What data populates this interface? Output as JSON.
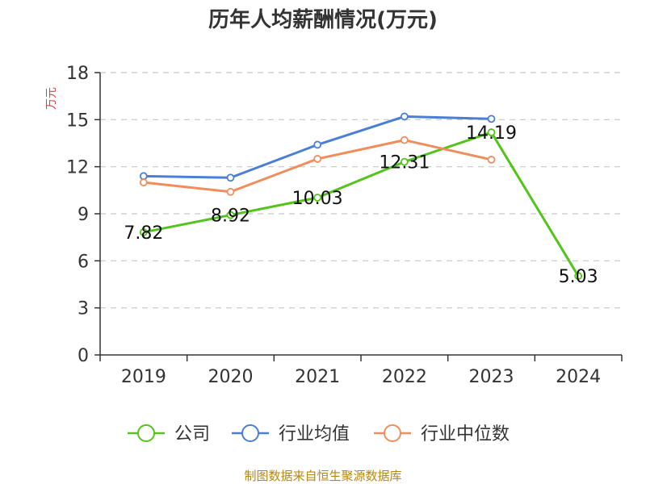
{
  "chart_data": {
    "type": "line",
    "title": "历年人均薪酬情况(万元)",
    "ylabel": "万元",
    "categories": [
      "2019",
      "2020",
      "2021",
      "2022",
      "2023",
      "2024"
    ],
    "yticks": [
      "0",
      "3",
      "6",
      "9",
      "12",
      "15",
      "18"
    ],
    "ylim": [
      0,
      18
    ],
    "grid": true,
    "legend_position": "bottom",
    "series": [
      {
        "name": "公司",
        "color": "#52c41a",
        "values": [
          7.82,
          8.92,
          10.03,
          12.31,
          14.19,
          5.03
        ],
        "labels": [
          "7.82",
          "8.92",
          "10.03",
          "12.31",
          "14.19",
          "5.03"
        ]
      },
      {
        "name": "行业均值",
        "color": "#4a7fd8",
        "values": [
          11.4,
          11.3,
          13.4,
          15.2,
          15.05,
          null
        ]
      },
      {
        "name": "行业中位数",
        "color": "#f28c5a",
        "values": [
          11.0,
          10.4,
          12.5,
          13.7,
          12.45,
          null
        ]
      }
    ]
  },
  "source": "制图数据来自恒生聚源数据库"
}
